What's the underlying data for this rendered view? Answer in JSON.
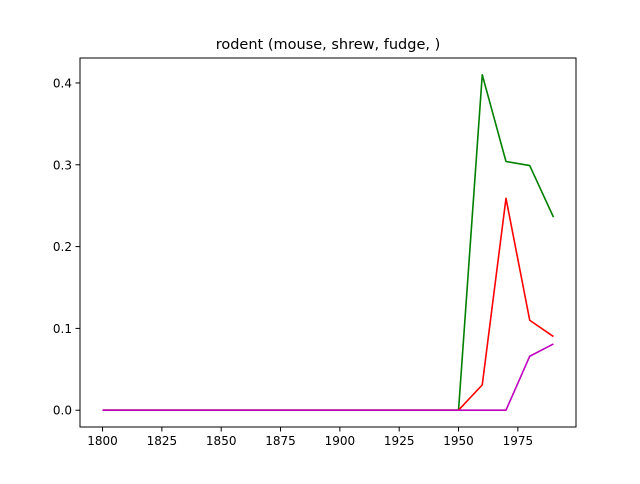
{
  "chart_data": {
    "type": "line",
    "title": "rodent (mouse, shrew, fudge, )",
    "xlabel": "",
    "ylabel": "",
    "x": [
      1800,
      1810,
      1820,
      1830,
      1840,
      1850,
      1860,
      1870,
      1880,
      1890,
      1900,
      1910,
      1920,
      1930,
      1940,
      1950,
      1960,
      1970,
      1980,
      1990
    ],
    "xlim": [
      1790.5,
      1999.5
    ],
    "ylim": [
      -0.0205,
      0.4305
    ],
    "xticks": [
      1800,
      1825,
      1850,
      1875,
      1900,
      1925,
      1950,
      1975
    ],
    "xtick_labels": [
      "1800",
      "1825",
      "1850",
      "1875",
      "1900",
      "1925",
      "1950",
      "1975"
    ],
    "yticks": [
      0.0,
      0.1,
      0.2,
      0.3,
      0.4
    ],
    "ytick_labels": [
      "0.0",
      "0.1",
      "0.2",
      "0.3",
      "0.4"
    ],
    "grid": false,
    "legend": "none",
    "series": [
      {
        "color": "#008000",
        "values": [
          0,
          0,
          0,
          0,
          0,
          0,
          0,
          0,
          0,
          0,
          0,
          0,
          0,
          0,
          0,
          0,
          0.41,
          0.304,
          0.299,
          0.236
        ]
      },
      {
        "color": "#ff0000",
        "values": [
          0,
          0,
          0,
          0,
          0,
          0,
          0,
          0,
          0,
          0,
          0,
          0,
          0,
          0,
          0,
          0,
          0.031,
          0.259,
          0.11,
          0.09
        ]
      },
      {
        "color": "#bf00bf",
        "values": [
          0,
          0,
          0,
          0,
          0,
          0,
          0,
          0,
          0,
          0,
          0,
          0,
          0,
          0,
          0,
          0,
          0,
          0,
          0.066,
          0.081
        ]
      }
    ]
  }
}
